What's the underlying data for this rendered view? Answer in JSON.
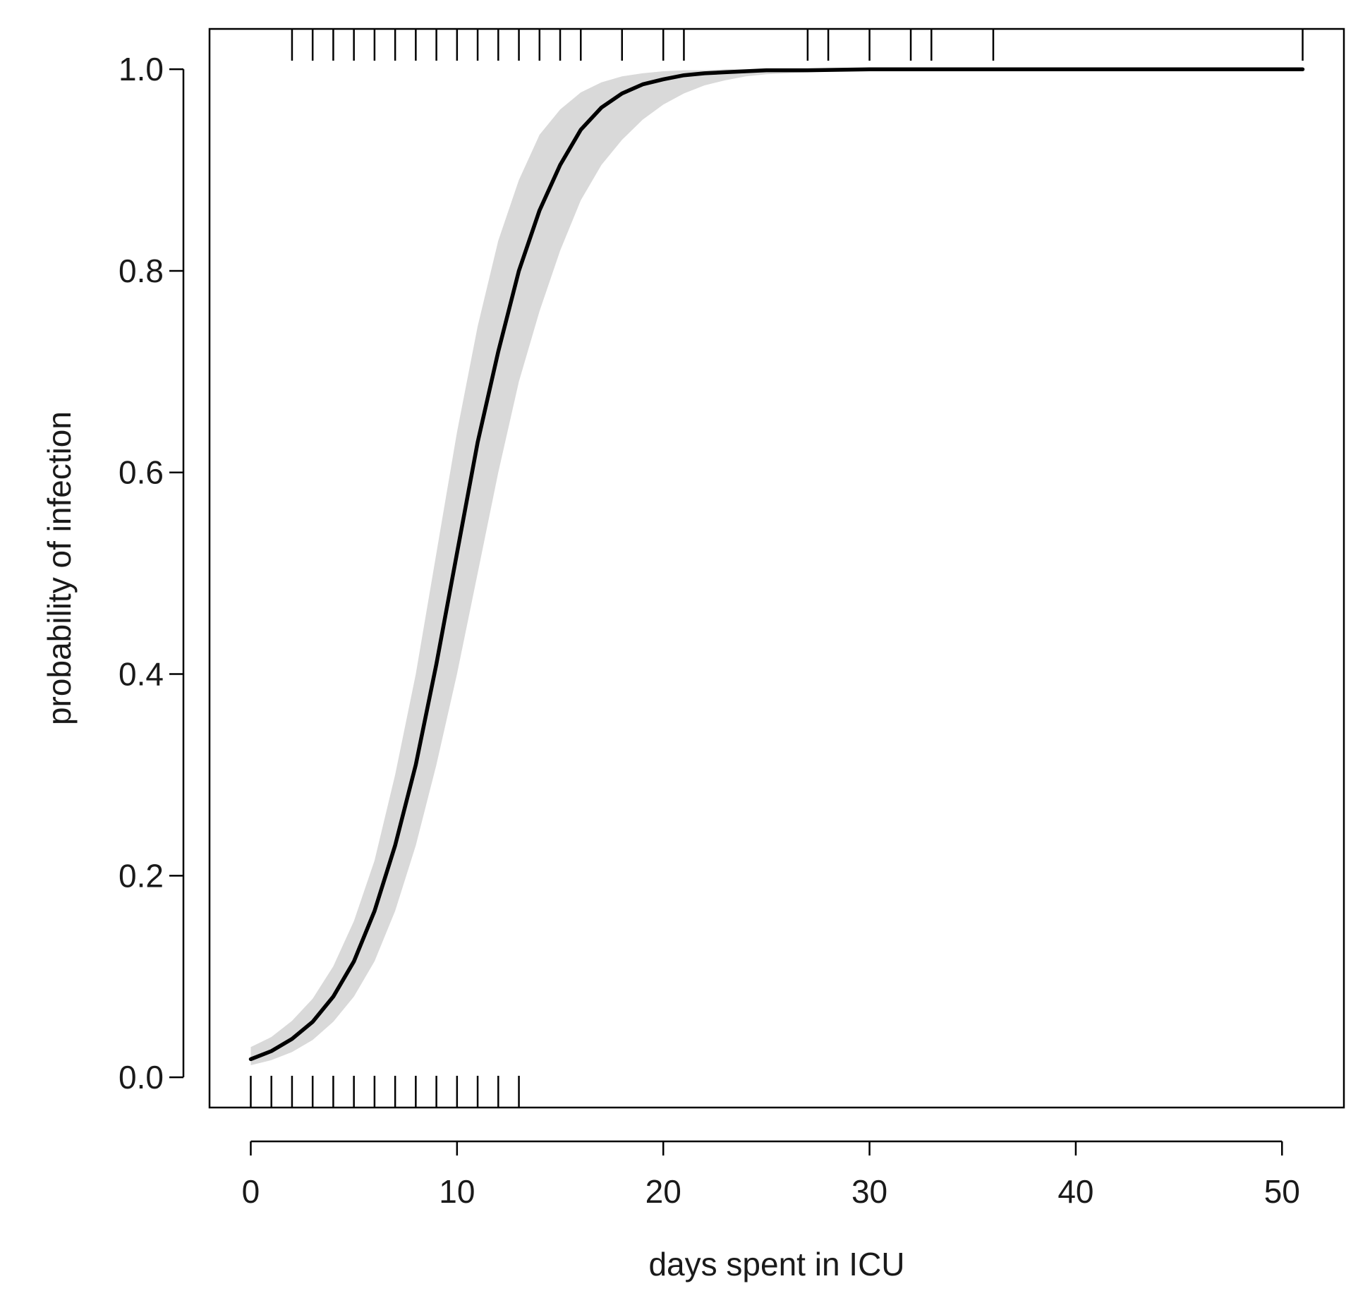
{
  "chart_data": {
    "type": "line",
    "title": "",
    "xlabel": "days spent in ICU",
    "ylabel": "probability of infection",
    "xlim": [
      -2,
      53
    ],
    "ylim": [
      -0.03,
      1.04
    ],
    "x_ticks": [
      0,
      10,
      20,
      30,
      40,
      50
    ],
    "x_tick_labels": [
      "0",
      "10",
      "20",
      "30",
      "40",
      "50"
    ],
    "y_ticks": [
      0.0,
      0.2,
      0.4,
      0.6,
      0.8,
      1.0
    ],
    "y_tick_labels": [
      "0.0",
      "0.2",
      "0.4",
      "0.6",
      "0.8",
      "1.0"
    ],
    "grid": false,
    "legend": "none",
    "series": [
      {
        "x": [
          0,
          1,
          2,
          3,
          4,
          5,
          6,
          7,
          8,
          9,
          10,
          11,
          12,
          13,
          14,
          15,
          16,
          17,
          18,
          19,
          20,
          21,
          22,
          23,
          24,
          25,
          27,
          30,
          35,
          40,
          45,
          51
        ],
        "y": [
          0.018,
          0.026,
          0.038,
          0.055,
          0.08,
          0.115,
          0.165,
          0.23,
          0.31,
          0.41,
          0.52,
          0.63,
          0.72,
          0.8,
          0.86,
          0.905,
          0.94,
          0.962,
          0.976,
          0.985,
          0.99,
          0.994,
          0.996,
          0.997,
          0.998,
          0.999,
          0.999,
          1.0,
          1.0,
          1.0,
          1.0,
          1.0
        ],
        "lower": [
          0.012,
          0.017,
          0.025,
          0.037,
          0.055,
          0.08,
          0.115,
          0.165,
          0.23,
          0.31,
          0.4,
          0.5,
          0.6,
          0.69,
          0.76,
          0.82,
          0.87,
          0.905,
          0.93,
          0.95,
          0.965,
          0.976,
          0.984,
          0.989,
          0.993,
          0.995,
          0.997,
          0.999,
          1.0,
          1.0,
          1.0,
          1.0
        ],
        "upper": [
          0.03,
          0.04,
          0.056,
          0.078,
          0.11,
          0.155,
          0.215,
          0.3,
          0.4,
          0.52,
          0.64,
          0.745,
          0.83,
          0.89,
          0.935,
          0.96,
          0.977,
          0.987,
          0.993,
          0.996,
          0.998,
          0.999,
          0.999,
          1.0,
          1.0,
          1.0,
          1.0,
          1.0,
          1.0,
          1.0,
          1.0,
          1.0
        ],
        "line_color": "#000000",
        "band_color": "#d9d9d9"
      }
    ],
    "rug_bottom": [
      0,
      1,
      2,
      3,
      4,
      5,
      6,
      7,
      8,
      9,
      10,
      11,
      12,
      13
    ],
    "rug_top": [
      2,
      3,
      4,
      5,
      6,
      7,
      8,
      9,
      10,
      11,
      12,
      13,
      14,
      15,
      16,
      18,
      20,
      21,
      27,
      28,
      30,
      32,
      33,
      36,
      51
    ]
  }
}
